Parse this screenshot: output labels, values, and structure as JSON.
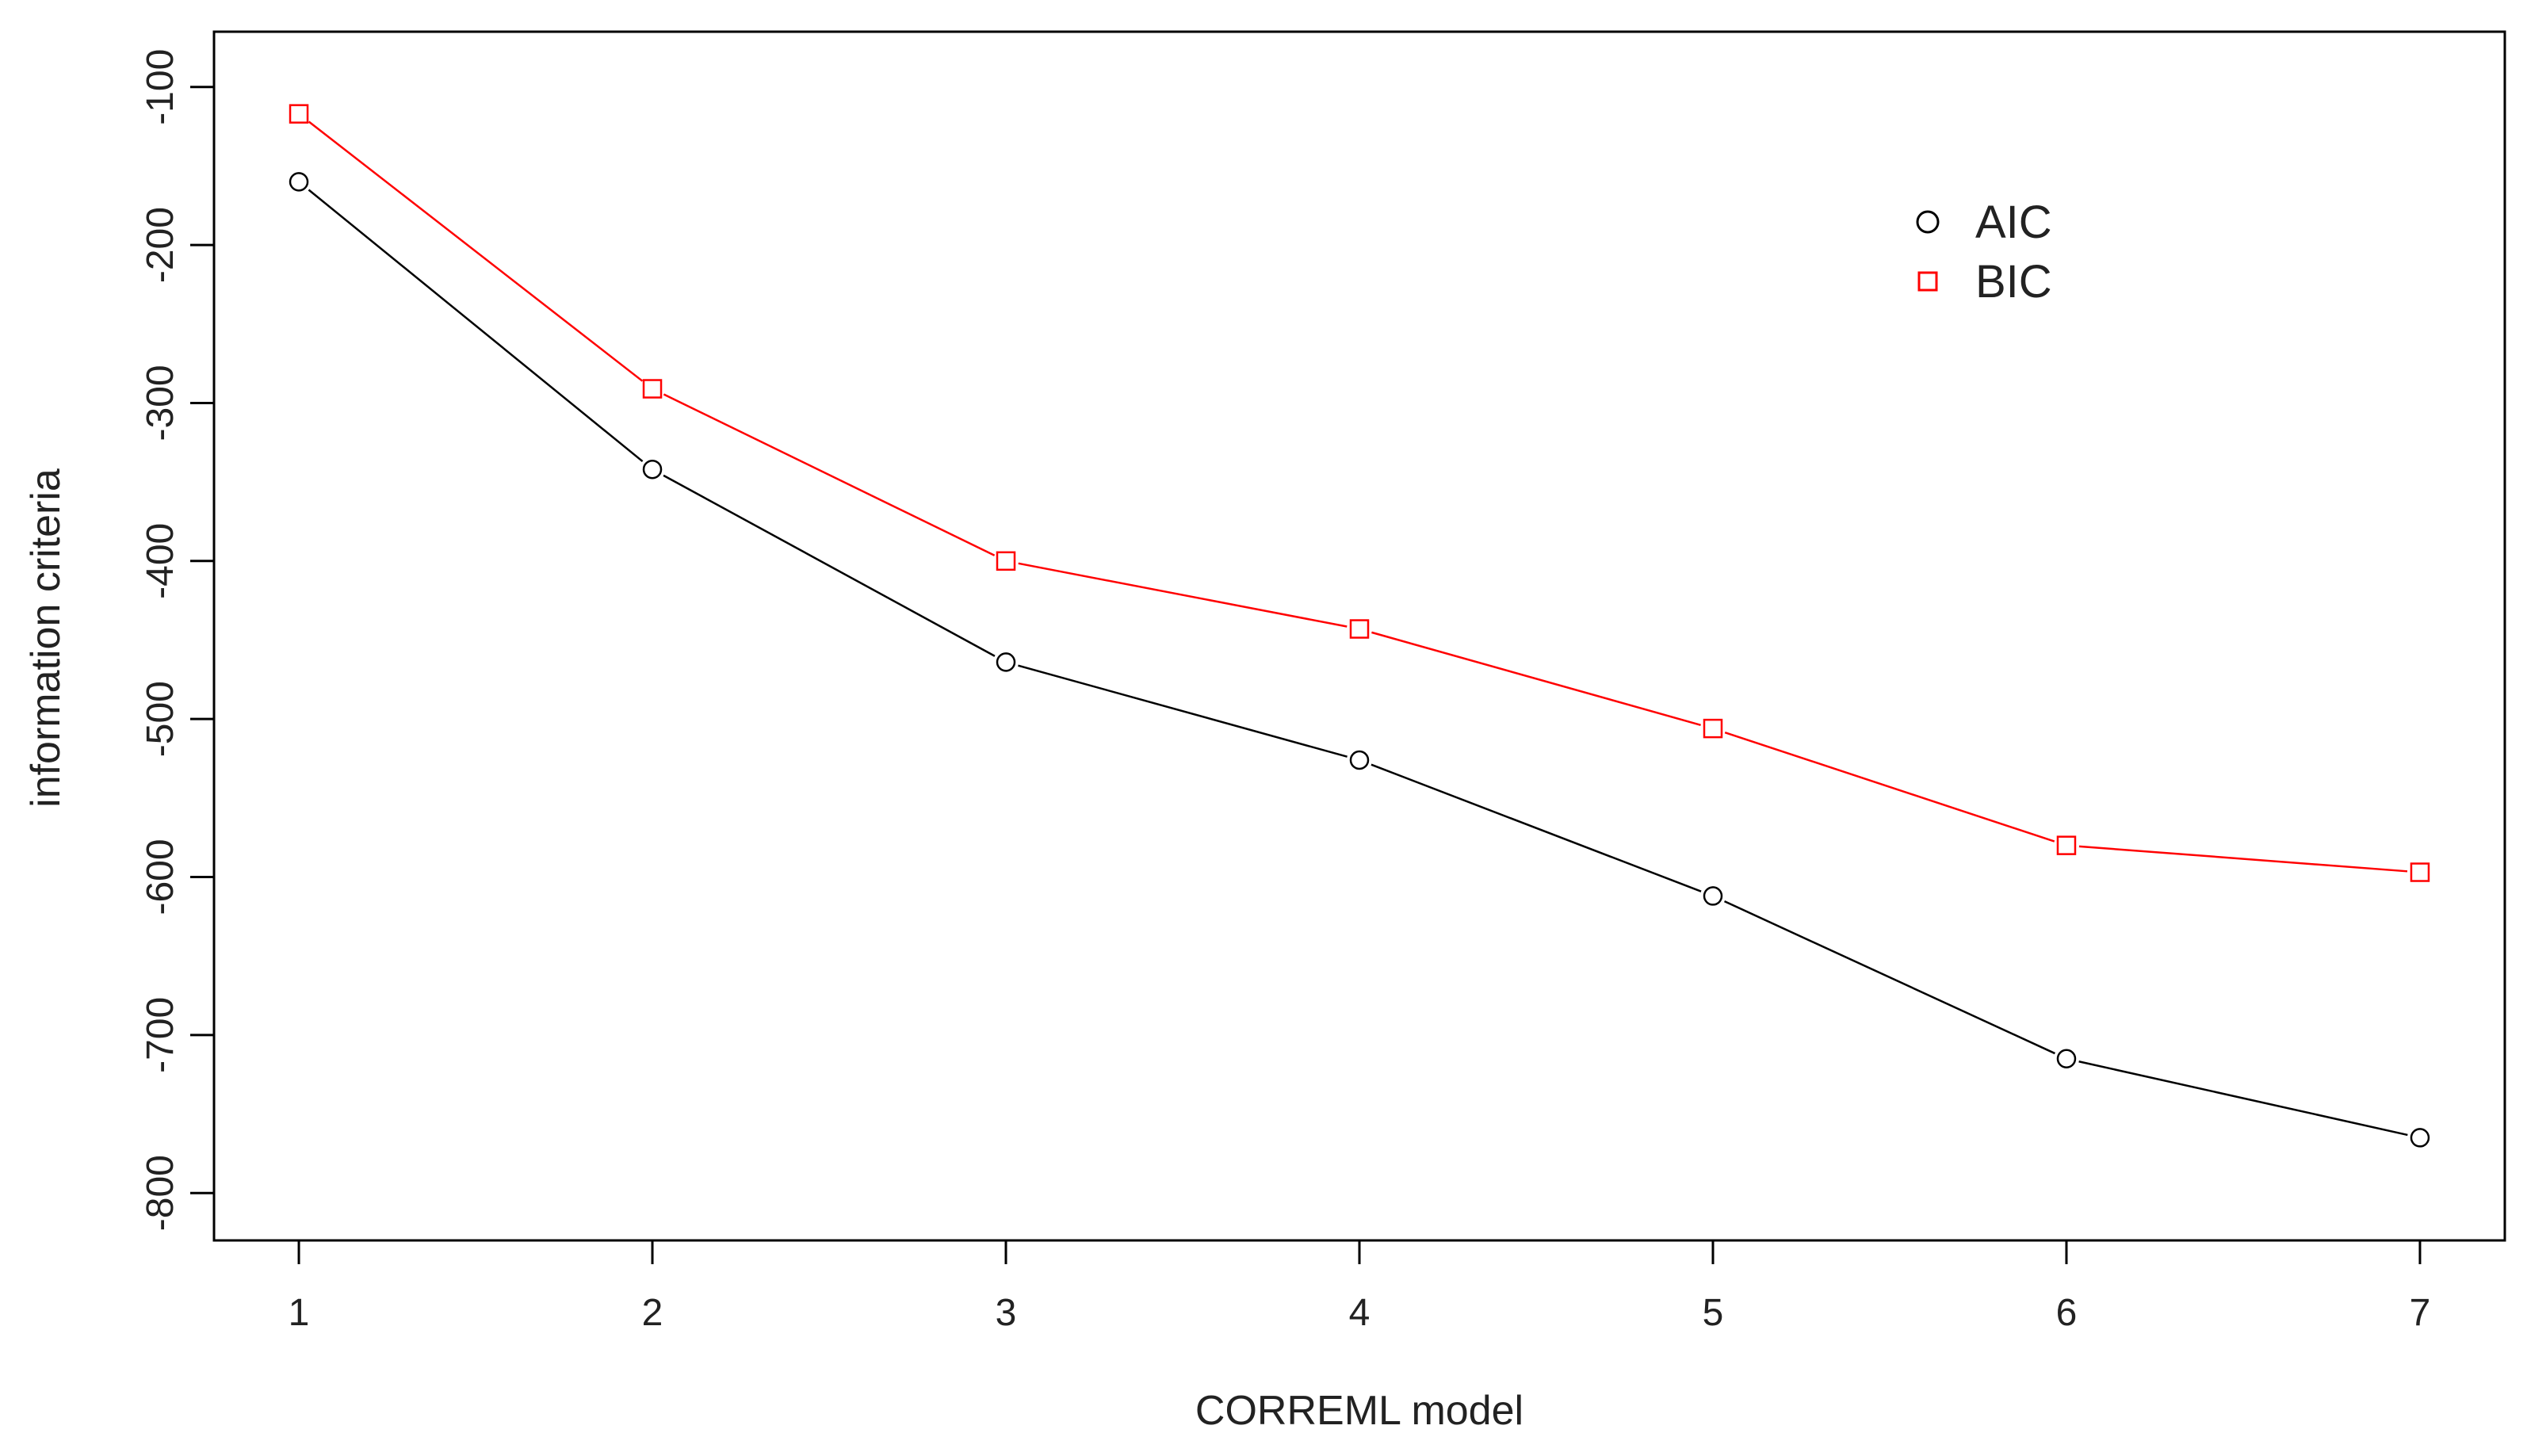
{
  "chart_data": {
    "type": "line",
    "title": "",
    "xlabel": "CORREML model",
    "ylabel": "information criteria",
    "x": [
      1,
      2,
      3,
      4,
      5,
      6,
      7
    ],
    "xlim": [
      0.76,
      7.24
    ],
    "ylim": [
      -830,
      -65
    ],
    "x_ticks": [
      "1",
      "2",
      "3",
      "4",
      "5",
      "6",
      "7"
    ],
    "y_ticks": [
      "-100",
      "-200",
      "-300",
      "-400",
      "-500",
      "-600",
      "-700",
      "-800"
    ],
    "grid": false,
    "legend_position": "top-right",
    "series": [
      {
        "name": "AIC",
        "marker": "circle",
        "color": "#000000",
        "values": [
          -160,
          -342,
          -464,
          -526,
          -612,
          -715,
          -765
        ]
      },
      {
        "name": "BIC",
        "marker": "square",
        "color": "#ff0000",
        "values": [
          -117,
          -291,
          -400,
          -443,
          -506,
          -580,
          -597
        ]
      }
    ]
  }
}
